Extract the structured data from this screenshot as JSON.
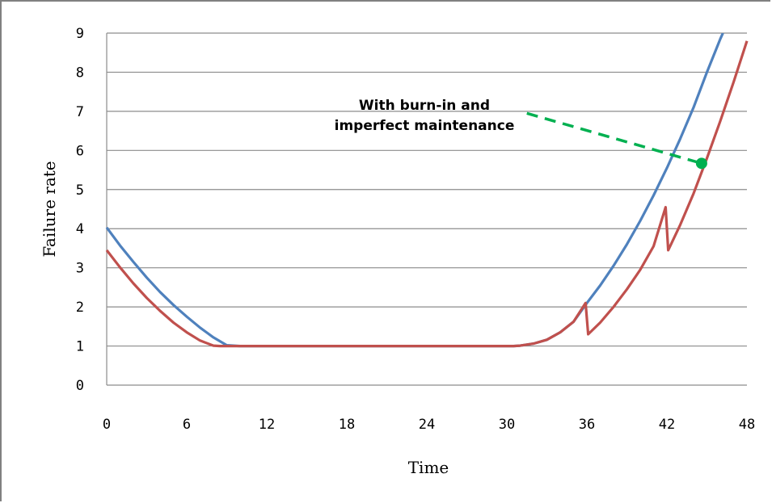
{
  "chart_data": {
    "type": "line",
    "title": "",
    "xlabel": "Time",
    "ylabel": "Failure rate",
    "xlim": [
      0,
      48
    ],
    "ylim": [
      0,
      9
    ],
    "xticks": [
      0,
      6,
      12,
      18,
      24,
      30,
      36,
      42,
      48
    ],
    "yticks": [
      0,
      1,
      2,
      3,
      4,
      5,
      6,
      7,
      8,
      9
    ],
    "grid": "horizontal",
    "legend": "none",
    "series": [
      {
        "color": "#4f81bd",
        "points": [
          [
            0,
            4.03
          ],
          [
            1,
            3.57
          ],
          [
            2,
            3.15
          ],
          [
            3,
            2.75
          ],
          [
            4,
            2.38
          ],
          [
            5,
            2.05
          ],
          [
            6,
            1.75
          ],
          [
            7,
            1.47
          ],
          [
            8,
            1.22
          ],
          [
            9,
            1.02
          ],
          [
            10,
            1.0
          ],
          [
            30.5,
            1.0
          ],
          [
            31,
            1.01
          ],
          [
            32,
            1.06
          ],
          [
            33,
            1.16
          ],
          [
            34,
            1.35
          ],
          [
            35,
            1.62
          ],
          [
            36,
            2.1
          ],
          [
            37,
            2.55
          ],
          [
            38,
            3.05
          ],
          [
            39,
            3.6
          ],
          [
            40,
            4.2
          ],
          [
            41,
            4.85
          ],
          [
            42,
            5.55
          ],
          [
            43,
            6.3
          ],
          [
            44,
            7.1
          ],
          [
            45,
            8.0
          ],
          [
            46,
            8.85
          ],
          [
            46.2,
            9.0
          ]
        ]
      },
      {
        "color": "#c0504d",
        "points": [
          [
            0,
            3.45
          ],
          [
            1,
            3.01
          ],
          [
            2,
            2.6
          ],
          [
            3,
            2.23
          ],
          [
            4,
            1.9
          ],
          [
            5,
            1.6
          ],
          [
            6,
            1.35
          ],
          [
            7,
            1.14
          ],
          [
            8,
            1.01
          ],
          [
            8.5,
            1.0
          ],
          [
            30.5,
            1.0
          ],
          [
            31,
            1.01
          ],
          [
            32,
            1.06
          ],
          [
            33,
            1.16
          ],
          [
            34,
            1.35
          ],
          [
            35,
            1.62
          ],
          [
            35.9,
            2.1
          ],
          [
            36.1,
            1.3
          ],
          [
            37,
            1.6
          ],
          [
            38,
            2.0
          ],
          [
            39,
            2.45
          ],
          [
            40,
            2.95
          ],
          [
            41,
            3.55
          ],
          [
            41.9,
            4.55
          ],
          [
            42.1,
            3.45
          ],
          [
            43,
            4.1
          ],
          [
            44,
            4.9
          ],
          [
            45,
            5.8
          ],
          [
            46,
            6.75
          ],
          [
            47,
            7.75
          ],
          [
            48,
            8.8
          ]
        ]
      }
    ],
    "annotations": [
      {
        "text_lines": [
          "With burn-in and",
          "imperfect maintenance"
        ],
        "color": "#00b050",
        "from": [
          31.5,
          6.95
        ],
        "to": [
          44.6,
          5.67
        ]
      }
    ]
  }
}
